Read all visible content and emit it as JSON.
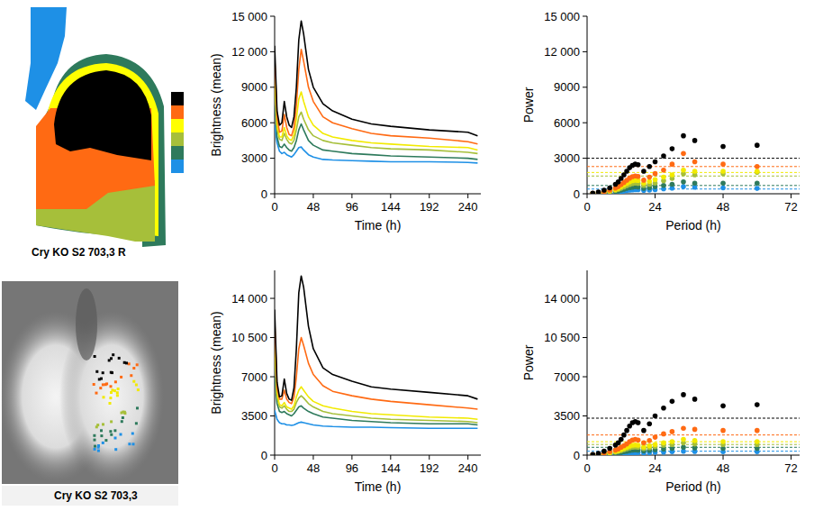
{
  "chart_data": [
    {
      "type": "map",
      "caption": "Cry KO S2 703,3 R",
      "colors": [
        "#000000",
        "#ff6a13",
        "#ffff00",
        "#a6bf3a",
        "#2e7a5c",
        "#1e90e6"
      ]
    },
    {
      "type": "line",
      "x_label": "Time (h)",
      "y_label": "Brightness (mean)",
      "x": [
        0,
        3,
        6,
        9,
        12,
        15,
        18,
        21,
        24,
        27,
        30,
        33,
        36,
        42,
        48,
        60,
        72,
        96,
        120,
        144,
        192,
        240,
        252
      ],
      "xlim": [
        0,
        256
      ],
      "xticks": [
        0,
        48,
        96,
        144,
        192,
        240
      ],
      "ylim": [
        0,
        15000
      ],
      "yticks": [
        0,
        3000,
        6000,
        9000,
        {
          "value": 12000,
          "label": "12 000"
        },
        {
          "value": 15000,
          "label": "15 000"
        }
      ],
      "series": [
        {
          "color": "#000000",
          "values": [
            12500,
            7000,
            5800,
            6000,
            7800,
            6500,
            5800,
            5600,
            6500,
            9000,
            13000,
            14600,
            13500,
            10500,
            9000,
            7600,
            7000,
            6300,
            5900,
            5700,
            5400,
            5200,
            4900
          ]
        },
        {
          "color": "#ff6a13",
          "values": [
            11500,
            6500,
            5200,
            5300,
            6700,
            5600,
            5000,
            4900,
            5600,
            7500,
            10500,
            12200,
            11200,
            9000,
            7800,
            6500,
            6000,
            5500,
            5100,
            4900,
            4700,
            4400,
            4200
          ]
        },
        {
          "color": "#f2ea00",
          "values": [
            10000,
            5800,
            4800,
            4800,
            5600,
            4900,
            4600,
            4500,
            5000,
            6300,
            8000,
            8600,
            7800,
            6500,
            5800,
            5100,
            4800,
            4500,
            4300,
            4200,
            4000,
            3900,
            3700
          ]
        },
        {
          "color": "#a6bf3a",
          "values": [
            9000,
            5500,
            4600,
            4500,
            5100,
            4600,
            4300,
            4200,
            4500,
            5400,
            6500,
            6900,
            6300,
            5400,
            4900,
            4500,
            4300,
            4100,
            3900,
            3800,
            3700,
            3500,
            3400
          ]
        },
        {
          "color": "#2e7a5c",
          "values": [
            7500,
            4800,
            4000,
            3900,
            4200,
            3900,
            3700,
            3600,
            3900,
            4500,
            5400,
            5900,
            5400,
            4500,
            4100,
            3700,
            3600,
            3400,
            3300,
            3200,
            3100,
            3000,
            2900
          ]
        },
        {
          "color": "#1e90e6",
          "values": [
            5800,
            4300,
            3600,
            3400,
            3500,
            3300,
            3200,
            3100,
            3300,
            3600,
            3900,
            3950,
            3700,
            3300,
            3100,
            2900,
            2850,
            2800,
            2750,
            2700,
            2700,
            2650,
            2600
          ]
        }
      ]
    },
    {
      "type": "scatter",
      "x_label": "Period (h)",
      "y_label": "Power",
      "x": [
        2,
        4,
        6,
        8,
        10,
        11,
        12,
        13,
        14,
        15,
        16,
        17,
        18,
        20,
        22,
        24,
        27,
        30,
        34,
        38,
        48,
        60
      ],
      "xlim": [
        0,
        75
      ],
      "xticks": [
        0,
        24,
        48,
        72
      ],
      "ylim": [
        0,
        15000
      ],
      "yticks": [
        0,
        3000,
        6000,
        9000,
        {
          "value": 12000,
          "label": "12 000"
        },
        {
          "value": 15000,
          "label": "15 000"
        }
      ],
      "series": [
        {
          "color": "#000000",
          "threshold": 3000,
          "values": [
            50,
            150,
            300,
            500,
            800,
            1000,
            1300,
            1600,
            1900,
            2200,
            2400,
            2500,
            2450,
            1900,
            2300,
            2700,
            3200,
            3800,
            4900,
            4500,
            4000,
            4100
          ]
        },
        {
          "color": "#ff6a13",
          "threshold": 2300,
          "values": [
            30,
            90,
            180,
            300,
            480,
            600,
            780,
            960,
            1140,
            1320,
            1450,
            1500,
            1470,
            1150,
            1400,
            1700,
            2000,
            2500,
            3400,
            2700,
            2500,
            2300
          ]
        },
        {
          "color": "#f2ea00",
          "threshold": 1800,
          "values": [
            20,
            70,
            140,
            230,
            370,
            460,
            600,
            740,
            870,
            1000,
            1100,
            1150,
            1120,
            900,
            1050,
            1200,
            1400,
            1600,
            2000,
            1900,
            1900,
            1900
          ]
        },
        {
          "color": "#a6bf3a",
          "threshold": 1500,
          "values": [
            15,
            50,
            110,
            180,
            290,
            360,
            470,
            580,
            680,
            780,
            860,
            900,
            880,
            700,
            800,
            900,
            1100,
            1300,
            1700,
            1600,
            1700,
            1800
          ]
        },
        {
          "color": "#2e7a5c",
          "threshold": 700,
          "values": [
            10,
            35,
            70,
            120,
            190,
            240,
            310,
            380,
            450,
            510,
            560,
            590,
            570,
            460,
            520,
            600,
            700,
            800,
            1000,
            900,
            900,
            900
          ]
        },
        {
          "color": "#1e90e6",
          "threshold": 400,
          "values": [
            5,
            20,
            40,
            70,
            110,
            140,
            180,
            220,
            260,
            300,
            330,
            350,
            340,
            280,
            310,
            350,
            420,
            480,
            600,
            550,
            500,
            450
          ]
        }
      ]
    },
    {
      "type": "image",
      "caption": "Cry KO S2 703,3",
      "colors": [
        "#000000",
        "#ff6a13",
        "#f2ea00",
        "#a6bf3a",
        "#2e7a5c",
        "#1e90e6"
      ]
    },
    {
      "type": "line",
      "x_label": "Time (h)",
      "y_label": "Brightness (mean)",
      "x": [
        0,
        3,
        6,
        9,
        12,
        15,
        18,
        21,
        24,
        27,
        30,
        33,
        36,
        42,
        48,
        60,
        72,
        96,
        120,
        144,
        192,
        240,
        252
      ],
      "xlim": [
        0,
        256
      ],
      "xticks": [
        0,
        48,
        96,
        144,
        192,
        240
      ],
      "ylim": [
        0,
        16500
      ],
      "yticks": [
        0,
        3500,
        7000,
        {
          "value": 10500,
          "label": "10 500"
        },
        {
          "value": 14000,
          "label": "14 000"
        }
      ],
      "series": [
        {
          "color": "#000000",
          "values": [
            13000,
            6500,
            5200,
            5300,
            6800,
            5500,
            5000,
            4900,
            6000,
            9500,
            14500,
            16000,
            15000,
            11500,
            9500,
            7800,
            7200,
            6600,
            6100,
            5900,
            5600,
            5300,
            5000
          ]
        },
        {
          "color": "#ff6a13",
          "values": [
            12000,
            6000,
            5000,
            5000,
            5800,
            5000,
            4700,
            4600,
            5200,
            7000,
            9500,
            10500,
            9800,
            8200,
            7200,
            6200,
            5700,
            5300,
            5000,
            4800,
            4500,
            4200,
            4100
          ]
        },
        {
          "color": "#f2ea00",
          "values": [
            10000,
            5500,
            4500,
            4400,
            4700,
            4300,
            4200,
            4100,
            4400,
            5200,
            5800,
            6100,
            5800,
            5200,
            4800,
            4400,
            4200,
            3900,
            3700,
            3600,
            3400,
            3300,
            3200
          ]
        },
        {
          "color": "#a6bf3a",
          "values": [
            9000,
            5200,
            4300,
            4200,
            4400,
            4100,
            3900,
            3900,
            4100,
            4700,
            5100,
            5300,
            5100,
            4600,
            4300,
            3900,
            3700,
            3500,
            3300,
            3200,
            3100,
            3000,
            2900
          ]
        },
        {
          "color": "#2e7a5c",
          "values": [
            7000,
            4600,
            3900,
            3800,
            3900,
            3700,
            3600,
            3500,
            3700,
            4000,
            4300,
            4400,
            4200,
            3900,
            3700,
            3400,
            3300,
            3100,
            3000,
            2900,
            2800,
            2800,
            2700
          ]
        },
        {
          "color": "#1e90e6",
          "values": [
            4000,
            3200,
            2900,
            2800,
            2800,
            2700,
            2700,
            2650,
            2700,
            2800,
            2900,
            2950,
            2900,
            2800,
            2700,
            2600,
            2550,
            2500,
            2500,
            2450,
            2400,
            2400,
            2400
          ]
        }
      ]
    },
    {
      "type": "scatter",
      "x_label": "Period (h)",
      "y_label": "Power",
      "x": [
        2,
        4,
        6,
        8,
        10,
        11,
        12,
        13,
        14,
        15,
        16,
        17,
        18,
        20,
        22,
        24,
        27,
        30,
        34,
        38,
        48,
        60
      ],
      "xlim": [
        0,
        75
      ],
      "xticks": [
        0,
        24,
        48,
        72
      ],
      "ylim": [
        0,
        16500
      ],
      "yticks": [
        0,
        3500,
        7000,
        {
          "value": 10500,
          "label": "10 500"
        },
        {
          "value": 14000,
          "label": "14 000"
        }
      ],
      "series": [
        {
          "color": "#000000",
          "threshold": 3300,
          "values": [
            50,
            150,
            350,
            600,
            900,
            1100,
            1400,
            1800,
            2200,
            2600,
            2900,
            3000,
            2900,
            2200,
            2800,
            3500,
            4200,
            4800,
            5400,
            5000,
            4400,
            4500
          ]
        },
        {
          "color": "#ff6a13",
          "threshold": 1800,
          "values": [
            30,
            80,
            180,
            300,
            450,
            550,
            700,
            850,
            1000,
            1200,
            1350,
            1400,
            1350,
            1100,
            1300,
            1600,
            1900,
            2100,
            2400,
            2300,
            2200,
            2200
          ]
        },
        {
          "color": "#f2ea00",
          "threshold": 1200,
          "values": [
            20,
            60,
            130,
            210,
            320,
            400,
            500,
            600,
            700,
            800,
            880,
            900,
            880,
            720,
            820,
            950,
            1100,
            1200,
            1400,
            1300,
            1200,
            1200
          ]
        },
        {
          "color": "#a6bf3a",
          "threshold": 950,
          "values": [
            15,
            45,
            100,
            170,
            260,
            320,
            400,
            480,
            560,
            640,
            700,
            720,
            700,
            580,
            660,
            760,
            880,
            950,
            1100,
            1000,
            950,
            950
          ]
        },
        {
          "color": "#2e7a5c",
          "threshold": 700,
          "values": [
            10,
            30,
            60,
            100,
            160,
            200,
            250,
            300,
            350,
            400,
            440,
            460,
            450,
            380,
            420,
            480,
            540,
            600,
            700,
            650,
            600,
            600
          ]
        },
        {
          "color": "#1e90e6",
          "threshold": 350,
          "values": [
            5,
            15,
            30,
            50,
            80,
            100,
            120,
            150,
            180,
            200,
            220,
            230,
            220,
            190,
            210,
            240,
            270,
            300,
            350,
            330,
            300,
            300
          ]
        }
      ]
    }
  ]
}
